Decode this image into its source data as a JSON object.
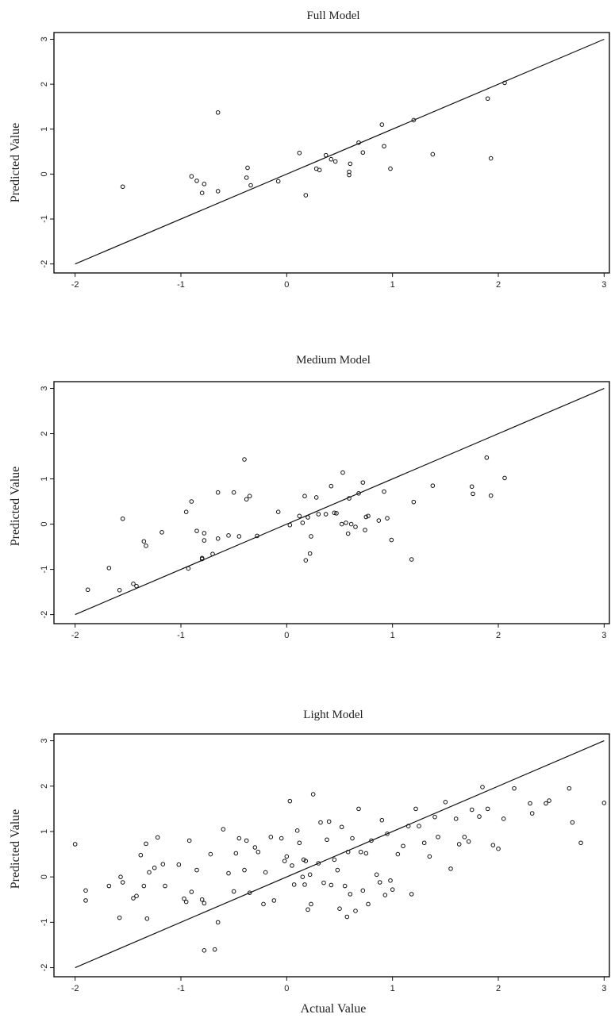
{
  "chart_data": [
    {
      "type": "scatter",
      "title": "Full Model",
      "xlabel": "",
      "ylabel": "Predicted Value",
      "xlim": [
        -2.2,
        3.05
      ],
      "ylim": [
        -2.2,
        3.15
      ],
      "xticks": [
        -2,
        -1,
        0,
        1,
        2,
        3
      ],
      "yticks": [
        -2,
        -1,
        0,
        1,
        2,
        3
      ],
      "xtick_labels": [
        "-2",
        "-1",
        "0",
        "1",
        "2",
        "3"
      ],
      "ytick_labels": [
        "-2",
        "-1",
        "0",
        "1",
        "2",
        "3"
      ],
      "grid": false,
      "reference_line": {
        "from": [
          -2,
          -2
        ],
        "to": [
          3,
          3
        ]
      },
      "x": [
        -1.55,
        -0.9,
        -0.85,
        -0.8,
        -0.78,
        -0.65,
        -0.65,
        -0.38,
        -0.37,
        -0.34,
        -0.08,
        0.12,
        0.18,
        0.28,
        0.31,
        0.37,
        0.42,
        0.46,
        0.59,
        0.59,
        0.6,
        0.68,
        0.72,
        0.9,
        0.92,
        0.98,
        1.2,
        1.38,
        1.9,
        1.93,
        2.06
      ],
      "y": [
        -0.28,
        -0.05,
        -0.15,
        -0.42,
        -0.22,
        -0.38,
        1.37,
        -0.08,
        0.14,
        -0.25,
        -0.16,
        0.47,
        -0.47,
        0.12,
        0.09,
        0.42,
        0.33,
        0.28,
        0.05,
        -0.02,
        0.23,
        0.7,
        0.48,
        1.1,
        0.62,
        0.12,
        1.2,
        0.44,
        1.68,
        0.35,
        2.03
      ]
    },
    {
      "type": "scatter",
      "title": "Medium Model",
      "xlabel": "",
      "ylabel": "Predicted Value",
      "xlim": [
        -2.2,
        3.05
      ],
      "ylim": [
        -2.2,
        3.15
      ],
      "xticks": [
        -2,
        -1,
        0,
        1,
        2,
        3
      ],
      "yticks": [
        -2,
        -1,
        0,
        1,
        2,
        3
      ],
      "xtick_labels": [
        "-2",
        "-1",
        "0",
        "1",
        "2",
        "3"
      ],
      "ytick_labels": [
        "-2",
        "-1",
        "0",
        "1",
        "2",
        "3"
      ],
      "grid": false,
      "reference_line": {
        "from": [
          -2,
          -2
        ],
        "to": [
          3,
          3
        ]
      },
      "x": [
        -1.88,
        -1.68,
        -1.58,
        -1.55,
        -1.45,
        -1.42,
        -1.35,
        -1.33,
        -1.18,
        -0.95,
        -0.93,
        -0.9,
        -0.85,
        -0.8,
        -0.8,
        -0.78,
        -0.78,
        -0.7,
        -0.65,
        -0.65,
        -0.55,
        -0.5,
        -0.45,
        -0.4,
        -0.38,
        -0.35,
        -0.28,
        -0.08,
        0.03,
        0.12,
        0.15,
        0.17,
        0.18,
        0.2,
        0.22,
        0.23,
        0.28,
        0.3,
        0.37,
        0.42,
        0.45,
        0.47,
        0.52,
        0.53,
        0.56,
        0.58,
        0.59,
        0.61,
        0.65,
        0.68,
        0.72,
        0.74,
        0.75,
        0.77,
        0.87,
        0.92,
        0.95,
        0.99,
        1.18,
        1.2,
        1.38,
        1.75,
        1.76,
        1.89,
        1.93,
        2.06
      ],
      "y": [
        -1.45,
        -0.97,
        -1.46,
        0.12,
        -1.32,
        -1.37,
        -0.38,
        -0.48,
        -0.18,
        0.27,
        -0.98,
        0.5,
        -0.15,
        -0.77,
        -0.75,
        -0.2,
        -0.36,
        -0.66,
        0.7,
        -0.32,
        -0.25,
        0.7,
        -0.27,
        1.43,
        0.55,
        0.62,
        -0.26,
        0.27,
        -0.02,
        0.18,
        0.03,
        0.62,
        -0.8,
        0.15,
        -0.65,
        -0.27,
        0.59,
        0.22,
        0.22,
        0.84,
        0.25,
        0.24,
        0.0,
        1.14,
        0.03,
        -0.21,
        0.57,
        0.0,
        -0.06,
        0.68,
        0.92,
        -0.13,
        0.16,
        0.18,
        0.08,
        0.72,
        0.13,
        -0.35,
        -0.78,
        0.49,
        0.85,
        0.83,
        0.67,
        1.47,
        0.63,
        1.02
      ]
    },
    {
      "type": "scatter",
      "title": "Light Model",
      "xlabel": "Actual Value",
      "ylabel": "Predicted Value",
      "xlim": [
        -2.2,
        3.05
      ],
      "ylim": [
        -2.2,
        3.15
      ],
      "xticks": [
        -2,
        -1,
        0,
        1,
        2,
        3
      ],
      "yticks": [
        -2,
        -1,
        0,
        1,
        2,
        3
      ],
      "xtick_labels": [
        "-2",
        "-1",
        "0",
        "1",
        "2",
        "3"
      ],
      "ytick_labels": [
        "-2",
        "-1",
        "0",
        "1",
        "2",
        "3"
      ],
      "grid": false,
      "reference_line": {
        "from": [
          -2,
          -2
        ],
        "to": [
          3,
          3
        ]
      },
      "x": [
        -2.0,
        -1.9,
        -1.9,
        -1.68,
        -1.58,
        -1.57,
        -1.55,
        -1.45,
        -1.42,
        -1.38,
        -1.35,
        -1.33,
        -1.32,
        -1.3,
        -1.25,
        -1.22,
        -1.17,
        -1.15,
        -1.02,
        -0.97,
        -0.95,
        -0.92,
        -0.9,
        -0.85,
        -0.8,
        -0.78,
        -0.78,
        -0.72,
        -0.68,
        -0.65,
        -0.6,
        -0.55,
        -0.5,
        -0.48,
        -0.45,
        -0.4,
        -0.38,
        -0.35,
        -0.3,
        -0.27,
        -0.22,
        -0.2,
        -0.15,
        -0.12,
        -0.05,
        -0.02,
        0.0,
        0.03,
        0.05,
        0.07,
        0.1,
        0.12,
        0.15,
        0.16,
        0.17,
        0.18,
        0.2,
        0.22,
        0.23,
        0.25,
        0.3,
        0.32,
        0.35,
        0.38,
        0.4,
        0.42,
        0.45,
        0.48,
        0.5,
        0.52,
        0.55,
        0.57,
        0.58,
        0.6,
        0.62,
        0.65,
        0.68,
        0.7,
        0.72,
        0.75,
        0.77,
        0.8,
        0.85,
        0.88,
        0.9,
        0.93,
        0.95,
        0.98,
        1.0,
        1.05,
        1.1,
        1.15,
        1.18,
        1.22,
        1.25,
        1.3,
        1.35,
        1.4,
        1.43,
        1.5,
        1.55,
        1.6,
        1.63,
        1.68,
        1.72,
        1.75,
        1.82,
        1.85,
        1.9,
        1.95,
        2.0,
        2.05,
        2.15,
        2.3,
        2.32,
        2.45,
        2.48,
        2.67,
        2.7,
        2.78,
        3.0
      ],
      "y": [
        0.72,
        -0.3,
        -0.52,
        -0.2,
        -0.9,
        0.0,
        -0.12,
        -0.47,
        -0.42,
        0.48,
        -0.2,
        0.73,
        -0.92,
        0.1,
        0.2,
        0.87,
        0.28,
        -0.2,
        0.27,
        -0.48,
        -0.55,
        0.8,
        -0.33,
        0.15,
        -0.5,
        -0.58,
        -1.62,
        0.5,
        -1.6,
        -1.0,
        1.05,
        0.08,
        -0.32,
        0.52,
        0.85,
        0.15,
        0.8,
        -0.35,
        0.65,
        0.55,
        -0.6,
        0.1,
        0.88,
        -0.52,
        0.85,
        0.35,
        0.45,
        1.67,
        0.25,
        -0.17,
        1.02,
        0.75,
        0.0,
        0.38,
        -0.17,
        0.35,
        -0.72,
        0.05,
        -0.6,
        1.82,
        0.3,
        1.2,
        -0.13,
        0.82,
        1.22,
        -0.18,
        0.38,
        0.15,
        -0.7,
        1.1,
        -0.2,
        -0.88,
        0.55,
        -0.38,
        0.85,
        -0.75,
        1.5,
        0.55,
        -0.3,
        0.52,
        -0.6,
        0.8,
        0.05,
        -0.12,
        1.25,
        -0.4,
        0.95,
        -0.08,
        -0.28,
        0.5,
        0.68,
        1.12,
        -0.38,
        1.5,
        1.12,
        0.75,
        0.45,
        1.32,
        0.88,
        1.65,
        0.18,
        1.28,
        0.72,
        0.88,
        0.78,
        1.48,
        1.33,
        1.98,
        1.5,
        0.7,
        0.62,
        1.28,
        1.95,
        1.62,
        1.4,
        1.62,
        1.68,
        1.95,
        1.2,
        0.75,
        1.63
      ]
    }
  ]
}
